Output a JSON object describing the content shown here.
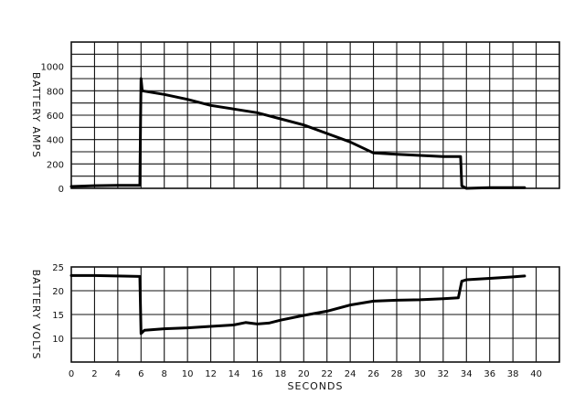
{
  "chart_data": [
    {
      "type": "line",
      "ylabel": "BATTERY AMPS",
      "xlabel": "",
      "xlim": [
        0,
        42
      ],
      "ylim": [
        0,
        1200
      ],
      "x_ticks": [],
      "y_ticks": [
        0,
        200,
        400,
        600,
        800,
        1000
      ],
      "y_tick_labels": [
        "0",
        "200",
        "400",
        "600",
        "800",
        "1000"
      ],
      "grid": true,
      "series": [
        {
          "values": [
            [
              0,
              15
            ],
            [
              2,
              22
            ],
            [
              4,
              25
            ],
            [
              5.9,
              25
            ],
            [
              6,
              900
            ],
            [
              6.1,
              800
            ],
            [
              8,
              770
            ],
            [
              10,
              730
            ],
            [
              12,
              680
            ],
            [
              14,
              650
            ],
            [
              16,
              620
            ],
            [
              18,
              570
            ],
            [
              20,
              520
            ],
            [
              22,
              450
            ],
            [
              24,
              380
            ],
            [
              26,
              290
            ],
            [
              28,
              280
            ],
            [
              30,
              270
            ],
            [
              32,
              260
            ],
            [
              33.5,
              260
            ],
            [
              33.6,
              20
            ],
            [
              34,
              0
            ],
            [
              36,
              5
            ],
            [
              38,
              5
            ],
            [
              39,
              5
            ]
          ]
        }
      ]
    },
    {
      "type": "line",
      "ylabel": "BATTERY VOLTS",
      "xlabel": "SECONDS",
      "xlim": [
        0,
        42
      ],
      "ylim": [
        5,
        25
      ],
      "x_ticks": [
        0,
        2,
        4,
        6,
        8,
        10,
        12,
        14,
        16,
        18,
        20,
        22,
        24,
        26,
        28,
        30,
        32,
        34,
        36,
        38,
        40
      ],
      "x_tick_labels": [
        "0",
        "2",
        "4",
        "6",
        "8",
        "10",
        "12",
        "14",
        "16",
        "18",
        "20",
        "22",
        "24",
        "26",
        "28",
        "30",
        "32",
        "34",
        "36",
        "38",
        "40"
      ],
      "y_ticks": [
        10,
        15,
        20,
        25
      ],
      "y_tick_labels": [
        "10",
        "15",
        "20",
        "25"
      ],
      "grid": true,
      "series": [
        {
          "values": [
            [
              0,
              23.2
            ],
            [
              2,
              23.2
            ],
            [
              4,
              23.1
            ],
            [
              5.9,
              23
            ],
            [
              6,
              11
            ],
            [
              6.3,
              11.7
            ],
            [
              8,
              12
            ],
            [
              10,
              12.2
            ],
            [
              12,
              12.5
            ],
            [
              14,
              12.8
            ],
            [
              15,
              13.3
            ],
            [
              16,
              13
            ],
            [
              17,
              13.2
            ],
            [
              18,
              13.8
            ],
            [
              20,
              14.8
            ],
            [
              22,
              15.7
            ],
            [
              24,
              17
            ],
            [
              26,
              17.8
            ],
            [
              28,
              18
            ],
            [
              30,
              18.1
            ],
            [
              32,
              18.3
            ],
            [
              33.3,
              18.5
            ],
            [
              33.6,
              22
            ],
            [
              34,
              22.3
            ],
            [
              36,
              22.6
            ],
            [
              38,
              22.9
            ],
            [
              39,
              23.1
            ]
          ]
        }
      ]
    }
  ]
}
